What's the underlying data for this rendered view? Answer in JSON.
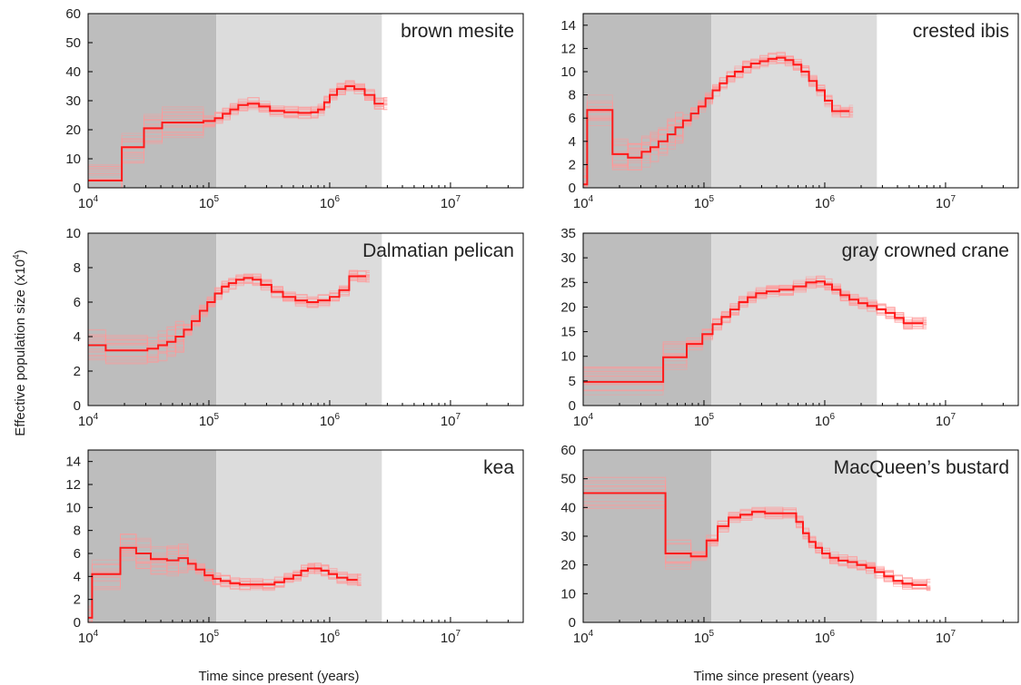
{
  "figure": {
    "ylabel": "Effective population size (x10",
    "ylabel_exp": "4",
    "ylabel_tail": ")",
    "xlabel": "Time since present (years)"
  },
  "chart_data": [
    {
      "type": "line",
      "title": "brown mesite",
      "xscale": "log",
      "xlim": [
        10000,
        40000000
      ],
      "ylim": [
        0,
        60
      ],
      "yticks": [
        0,
        10,
        20,
        30,
        40,
        50,
        60
      ],
      "xticks": [
        10000,
        100000,
        1000000,
        10000000
      ],
      "xtick_labels": [
        {
          "base": "10",
          "exp": "4"
        },
        {
          "base": "10",
          "exp": "5"
        },
        {
          "base": "10",
          "exp": "6"
        },
        {
          "base": "10",
          "exp": "7"
        }
      ],
      "shaded_regions": [
        {
          "from": 10000,
          "to": 115000,
          "color": "#bdbdbd"
        },
        {
          "from": 115000,
          "to": 2700000,
          "color": "#dcdcdc"
        }
      ],
      "series": [
        {
          "style": "step",
          "color": "#ff1a1a",
          "x": [
            10000,
            19000,
            29000,
            41000,
            90000,
            112000,
            130000,
            150000,
            175000,
            210000,
            260000,
            320000,
            420000,
            550000,
            700000,
            800000,
            900000,
            1000000,
            1150000,
            1350000,
            1600000,
            1950000,
            2350000,
            2800000
          ],
          "y": [
            2.5,
            14,
            20.5,
            22.5,
            23,
            24,
            25.5,
            27,
            28.5,
            29,
            28,
            26.5,
            26,
            25.8,
            26,
            27,
            29.5,
            32,
            34,
            35,
            34,
            32,
            29,
            29
          ]
        }
      ]
    },
    {
      "type": "line",
      "title": "crested ibis",
      "xscale": "log",
      "xlim": [
        10000,
        40000000
      ],
      "ylim": [
        0,
        15
      ],
      "yticks": [
        0,
        2,
        4,
        6,
        8,
        10,
        12,
        14
      ],
      "xticks": [
        10000,
        100000,
        1000000,
        10000000
      ],
      "xtick_labels": [
        {
          "base": "10",
          "exp": "4"
        },
        {
          "base": "10",
          "exp": "5"
        },
        {
          "base": "10",
          "exp": "6"
        },
        {
          "base": "10",
          "exp": "7"
        }
      ],
      "shaded_regions": [
        {
          "from": 10000,
          "to": 115000,
          "color": "#bdbdbd"
        },
        {
          "from": 115000,
          "to": 2700000,
          "color": "#dcdcdc"
        }
      ],
      "series": [
        {
          "style": "step",
          "color": "#ff1a1a",
          "x": [
            10000,
            10800,
            17500,
            23500,
            30500,
            36000,
            42000,
            50000,
            58000,
            67000,
            78000,
            90000,
            103000,
            118000,
            135000,
            155000,
            180000,
            210000,
            245000,
            290000,
            340000,
            400000,
            470000,
            550000,
            640000,
            740000,
            860000,
            1000000,
            1150000,
            1350000,
            1600000
          ],
          "y": [
            0.3,
            6.7,
            2.9,
            2.6,
            3.1,
            3.5,
            4.0,
            4.6,
            5.2,
            5.8,
            6.4,
            7.0,
            7.7,
            8.4,
            9.0,
            9.6,
            10.0,
            10.4,
            10.7,
            10.9,
            11.1,
            11.2,
            11.0,
            10.6,
            10.0,
            9.2,
            8.4,
            7.5,
            6.6,
            6.6,
            6.6
          ]
        }
      ]
    },
    {
      "type": "line",
      "title": "Dalmatian pelican",
      "xscale": "log",
      "xlim": [
        10000,
        40000000
      ],
      "ylim": [
        0,
        10
      ],
      "yticks": [
        0,
        2,
        4,
        6,
        8,
        10
      ],
      "xticks": [
        10000,
        100000,
        1000000,
        10000000
      ],
      "xtick_labels": [
        {
          "base": "10",
          "exp": "4"
        },
        {
          "base": "10",
          "exp": "5"
        },
        {
          "base": "10",
          "exp": "6"
        },
        {
          "base": "10",
          "exp": "7"
        }
      ],
      "shaded_regions": [
        {
          "from": 10000,
          "to": 115000,
          "color": "#bdbdbd"
        },
        {
          "from": 115000,
          "to": 2700000,
          "color": "#dcdcdc"
        }
      ],
      "series": [
        {
          "style": "step",
          "color": "#ff1a1a",
          "x": [
            10000,
            14000,
            31000,
            38000,
            45000,
            53000,
            62000,
            72000,
            84000,
            97000,
            112000,
            128000,
            146000,
            168000,
            195000,
            230000,
            270000,
            330000,
            410000,
            520000,
            650000,
            800000,
            1000000,
            1200000,
            1450000,
            1700000,
            2000000
          ],
          "y": [
            3.5,
            3.2,
            3.3,
            3.5,
            3.7,
            4.0,
            4.4,
            4.9,
            5.5,
            6.0,
            6.5,
            6.9,
            7.1,
            7.3,
            7.4,
            7.3,
            7.0,
            6.6,
            6.3,
            6.1,
            6.0,
            6.1,
            6.3,
            6.7,
            7.5,
            7.5,
            7.5
          ]
        }
      ]
    },
    {
      "type": "line",
      "title": "gray crowned crane",
      "xscale": "log",
      "xlim": [
        10000,
        40000000
      ],
      "ylim": [
        0,
        35
      ],
      "yticks": [
        0,
        5,
        10,
        15,
        20,
        25,
        30,
        35
      ],
      "xticks": [
        10000,
        100000,
        1000000,
        10000000
      ],
      "xtick_labels": [
        {
          "base": "10",
          "exp": "4"
        },
        {
          "base": "10",
          "exp": "5"
        },
        {
          "base": "10",
          "exp": "6"
        },
        {
          "base": "10",
          "exp": "7"
        }
      ],
      "shaded_regions": [
        {
          "from": 10000,
          "to": 115000,
          "color": "#bdbdbd"
        },
        {
          "from": 115000,
          "to": 2700000,
          "color": "#dcdcdc"
        }
      ],
      "series": [
        {
          "style": "step",
          "color": "#ff1a1a",
          "x": [
            10000,
            46000,
            72000,
            97000,
            118000,
            140000,
            165000,
            195000,
            230000,
            270000,
            330000,
            420000,
            550000,
            700000,
            850000,
            1000000,
            1150000,
            1350000,
            1600000,
            1900000,
            2250000,
            2700000,
            3200000,
            3800000,
            4500000,
            5300000,
            6500000
          ],
          "y": [
            4.8,
            9.8,
            12.5,
            14.5,
            16.5,
            18.0,
            19.5,
            21.0,
            22.0,
            22.8,
            23.2,
            23.5,
            24.2,
            25.0,
            25.2,
            24.6,
            23.5,
            22.4,
            21.5,
            20.8,
            20.2,
            19.5,
            18.8,
            17.8,
            16.7,
            16.7,
            16.7
          ]
        }
      ]
    },
    {
      "type": "line",
      "title": "kea",
      "xscale": "log",
      "xlim": [
        10000,
        40000000
      ],
      "ylim": [
        0,
        15
      ],
      "yticks": [
        0,
        2,
        4,
        6,
        8,
        10,
        12,
        14
      ],
      "xticks": [
        10000,
        100000,
        1000000,
        10000000
      ],
      "xtick_labels": [
        {
          "base": "10",
          "exp": "4"
        },
        {
          "base": "10",
          "exp": "5"
        },
        {
          "base": "10",
          "exp": "6"
        },
        {
          "base": "10",
          "exp": "7"
        }
      ],
      "shaded_regions": [
        {
          "from": 10000,
          "to": 115000,
          "color": "#bdbdbd"
        },
        {
          "from": 115000,
          "to": 2700000,
          "color": "#dcdcdc"
        }
      ],
      "series": [
        {
          "style": "step",
          "color": "#ff1a1a",
          "x": [
            10000,
            10800,
            18500,
            25000,
            33000,
            45000,
            56000,
            67000,
            78000,
            92000,
            108000,
            125000,
            150000,
            180000,
            220000,
            280000,
            350000,
            420000,
            500000,
            580000,
            660000,
            750000,
            850000,
            980000,
            1150000,
            1400000,
            1700000
          ],
          "y": [
            0.4,
            4.2,
            6.5,
            6.0,
            5.5,
            5.4,
            5.6,
            5.1,
            4.6,
            4.1,
            3.8,
            3.6,
            3.4,
            3.3,
            3.3,
            3.3,
            3.5,
            3.8,
            4.1,
            4.5,
            4.7,
            4.7,
            4.5,
            4.2,
            3.9,
            3.7,
            3.7
          ]
        }
      ]
    },
    {
      "type": "line",
      "title": "MacQueen’s bustard",
      "xscale": "log",
      "xlim": [
        10000,
        40000000
      ],
      "ylim": [
        0,
        60
      ],
      "yticks": [
        0,
        10,
        20,
        30,
        40,
        50,
        60
      ],
      "xticks": [
        10000,
        100000,
        1000000,
        10000000
      ],
      "xtick_labels": [
        {
          "base": "10",
          "exp": "4"
        },
        {
          "base": "10",
          "exp": "5"
        },
        {
          "base": "10",
          "exp": "6"
        },
        {
          "base": "10",
          "exp": "7"
        }
      ],
      "shaded_regions": [
        {
          "from": 10000,
          "to": 115000,
          "color": "#bdbdbd"
        },
        {
          "from": 115000,
          "to": 2700000,
          "color": "#dcdcdc"
        }
      ],
      "series": [
        {
          "style": "step",
          "color": "#ff1a1a",
          "x": [
            10000,
            48000,
            78000,
            105000,
            130000,
            160000,
            200000,
            250000,
            320000,
            450000,
            580000,
            660000,
            740000,
            840000,
            950000,
            1100000,
            1300000,
            1550000,
            1850000,
            2200000,
            2600000,
            3100000,
            3700000,
            4400000,
            5300000,
            7000000
          ],
          "y": [
            45,
            24,
            23,
            28.5,
            33.5,
            36.5,
            37.5,
            38.5,
            38,
            38,
            35,
            31,
            28,
            26,
            24,
            22.5,
            21.5,
            21,
            20,
            19,
            17.5,
            16,
            14.5,
            13.5,
            13,
            13
          ]
        }
      ]
    }
  ]
}
